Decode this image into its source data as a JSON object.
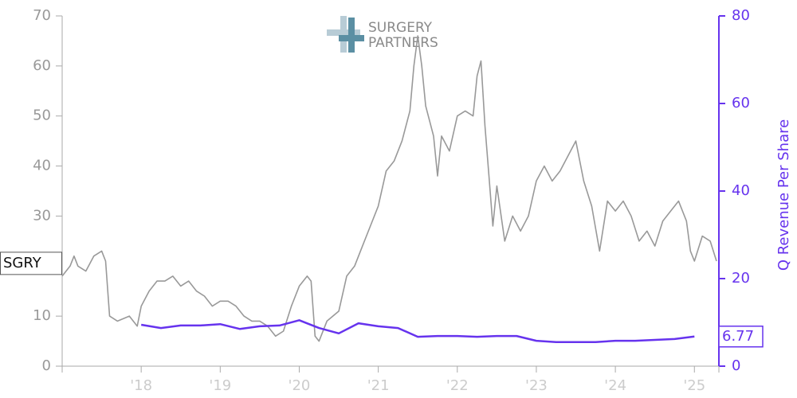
{
  "chart_data": {
    "type": "line",
    "logo": [
      "SURGERY",
      "PARTNERS"
    ],
    "xlim": [
      2017,
      2025.31
    ],
    "xticks": [
      {
        "value": 2018,
        "label": "'18"
      },
      {
        "value": 2019,
        "label": "'19"
      },
      {
        "value": 2020,
        "label": "'20"
      },
      {
        "value": 2021,
        "label": "'21"
      },
      {
        "value": 2022,
        "label": "'22"
      },
      {
        "value": 2023,
        "label": "'23"
      },
      {
        "value": 2024,
        "label": "'24"
      },
      {
        "value": 2025,
        "label": "'25"
      }
    ],
    "ylim": [
      0,
      70
    ],
    "yticks": [
      0,
      10,
      20,
      30,
      40,
      50,
      60,
      70
    ],
    "y2lim": [
      0,
      80
    ],
    "y2ticks": [
      0,
      20,
      40,
      60,
      80
    ],
    "series": [
      {
        "name": "SGRY",
        "color": "#999999",
        "x": [
          2017.0,
          2017.1,
          2017.15,
          2017.2,
          2017.3,
          2017.4,
          2017.5,
          2017.55,
          2017.6,
          2017.7,
          2017.85,
          2017.95,
          2018.0,
          2018.1,
          2018.2,
          2018.3,
          2018.4,
          2018.5,
          2018.6,
          2018.7,
          2018.8,
          2018.9,
          2019.0,
          2019.1,
          2019.2,
          2019.3,
          2019.4,
          2019.5,
          2019.6,
          2019.7,
          2019.8,
          2019.9,
          2020.0,
          2020.1,
          2020.15,
          2020.2,
          2020.25,
          2020.35,
          2020.5,
          2020.6,
          2020.7,
          2020.8,
          2020.9,
          2021.0,
          2021.1,
          2021.2,
          2021.3,
          2021.4,
          2021.45,
          2021.5,
          2021.55,
          2021.6,
          2021.7,
          2021.75,
          2021.8,
          2021.9,
          2022.0,
          2022.1,
          2022.2,
          2022.25,
          2022.3,
          2022.35,
          2022.4,
          2022.45,
          2022.5,
          2022.6,
          2022.7,
          2022.8,
          2022.9,
          2023.0,
          2023.1,
          2023.2,
          2023.3,
          2023.4,
          2023.5,
          2023.6,
          2023.7,
          2023.8,
          2023.9,
          2024.0,
          2024.1,
          2024.2,
          2024.3,
          2024.4,
          2024.5,
          2024.6,
          2024.7,
          2024.8,
          2024.9,
          2024.95,
          2025.0,
          2025.1,
          2025.2,
          2025.28
        ],
        "values": [
          18,
          20,
          22,
          20,
          19,
          22,
          23,
          21,
          10,
          9,
          10,
          8,
          12,
          15,
          17,
          17,
          18,
          16,
          17,
          15,
          14,
          12,
          13,
          13,
          12,
          10,
          9,
          9,
          8,
          6,
          7,
          12,
          16,
          18,
          17,
          6,
          5,
          9,
          11,
          18,
          20,
          24,
          28,
          32,
          39,
          41,
          45,
          51,
          60,
          66,
          60,
          52,
          46,
          38,
          46,
          43,
          50,
          51,
          50,
          58,
          61,
          48,
          38,
          28,
          36,
          25,
          30,
          27,
          30,
          37,
          40,
          37,
          39,
          42,
          45,
          37,
          32,
          23,
          33,
          31,
          33,
          30,
          25,
          27,
          24,
          29,
          31,
          33,
          29,
          23,
          21,
          26,
          25,
          21
        ]
      },
      {
        "name": "Q Revenue Per Share",
        "color": "#6633ee",
        "axis": "y2",
        "x": [
          2018.0,
          2018.25,
          2018.5,
          2018.75,
          2019.0,
          2019.25,
          2019.5,
          2019.75,
          2020.0,
          2020.25,
          2020.5,
          2020.75,
          2021.0,
          2021.25,
          2021.5,
          2021.75,
          2022.0,
          2022.25,
          2022.5,
          2022.75,
          2023.0,
          2023.25,
          2023.5,
          2023.75,
          2024.0,
          2024.25,
          2024.5,
          2024.75,
          2025.0
        ],
        "values": [
          9.45,
          8.7,
          9.3,
          9.3,
          9.6,
          8.5,
          9.1,
          9.3,
          10.5,
          8.7,
          7.5,
          9.8,
          9.1,
          8.7,
          6.7,
          6.9,
          6.9,
          6.7,
          6.9,
          6.9,
          5.8,
          5.5,
          5.5,
          5.5,
          5.8,
          5.8,
          6.0,
          6.2,
          6.77
        ],
        "value_labels": [
          null,
          null,
          null,
          null,
          null,
          null,
          null,
          null,
          null,
          null,
          null,
          null,
          null,
          null,
          null,
          null,
          null,
          null,
          null,
          null,
          null,
          null,
          null,
          null,
          null,
          null,
          null,
          null,
          "6.77"
        ]
      }
    ]
  }
}
